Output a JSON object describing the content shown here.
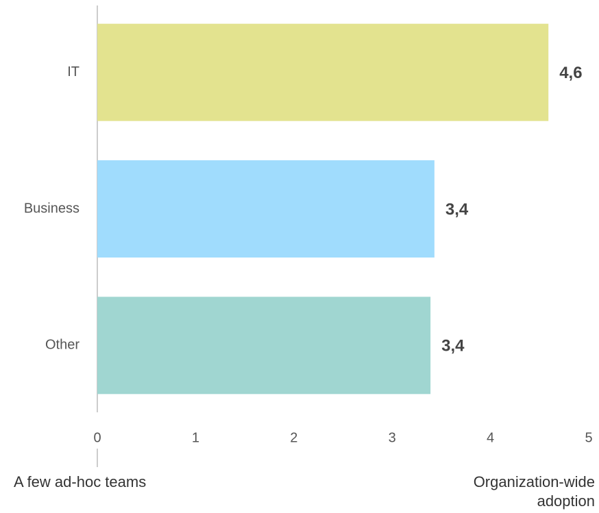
{
  "chart_data": {
    "type": "hbar",
    "categories": [
      "IT",
      "Business",
      "Other"
    ],
    "series": [
      {
        "colors": [
          "#e3e38f",
          "#a0dcfd",
          "#a0d6d1"
        ],
        "values": [
          4.59,
          3.43,
          3.39
        ],
        "value_labels": [
          "4,6",
          "3,4",
          "3,4"
        ]
      }
    ],
    "xlim": [
      0,
      5
    ],
    "xticks": [
      0,
      1,
      2,
      3,
      4,
      5
    ],
    "grid": false,
    "x_axis_low_label": "A few ad-hoc teams",
    "x_axis_high_label": "Organization-wide adoption"
  }
}
